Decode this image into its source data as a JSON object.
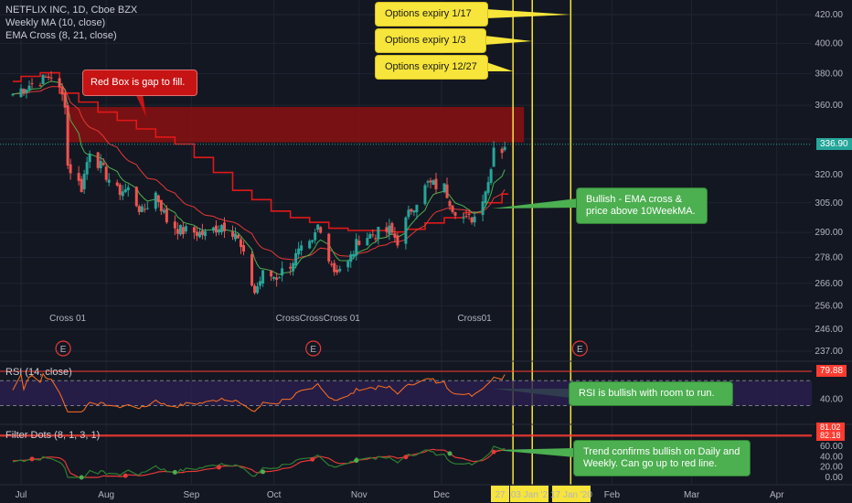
{
  "legend": {
    "title": "NETFLIX INC, 1D, Cboe BZX",
    "weekly_ma": "Weekly MA (10, close)",
    "ema_cross": "EMA Cross (8, 21, close)",
    "rsi": "RSI (14, close)",
    "filter_dots": "Filter Dots (8, 1, 3, 1)"
  },
  "colors": {
    "background": "#131722",
    "up": "#26a69a",
    "down": "#ef5350",
    "ma": "#e01818",
    "ema_fast": "#4caf50",
    "ema_slow": "#e53935",
    "gap_box": "#8b1010",
    "vline": "#f7e53b",
    "rsi_band": "#2a1f4f",
    "rsi_line": "#ff6f22"
  },
  "annotations": {
    "opt_1_17": "Options expiry 1/17",
    "opt_1_3": "Options expiry 1/3",
    "opt_12_27": "Options expiry 12/27",
    "red_box": "Red Box is gap to fill.",
    "bullish_ema": "Bullish - EMA cross & price above 10WeekMA.",
    "rsi_bullish": "RSI is bullish with room to run.",
    "trend_confirms": "Trend confirms bullish on Daily and Weekly.  Can go up to red line."
  },
  "current_price": "336.90",
  "rsi_current": "79.88",
  "filter_values": [
    "81.02",
    "82.18"
  ],
  "cross_labels": [
    "Cross 01",
    "CrossCrossCross 01",
    "Cross01"
  ],
  "earnings_marker": "E",
  "chart_data": {
    "type": "candlestick",
    "x_range": [
      "2019-06-24",
      "2020-04-10"
    ],
    "y_axis": {
      "ticks": [
        237,
        246,
        256,
        266,
        278,
        290,
        305,
        320,
        340,
        360,
        380,
        400,
        420
      ],
      "tick_labels": [
        "237.00",
        "246.00",
        "256.00",
        "266.00",
        "278.00",
        "290.00",
        "305.00",
        "320.00",
        "340.00",
        "360.00",
        "380.00",
        "400.00",
        "420.00"
      ],
      "scale": "log"
    },
    "x_axis_labels": [
      {
        "date": "2019-07-01",
        "label": "Jul"
      },
      {
        "date": "2019-08-01",
        "label": "Aug"
      },
      {
        "date": "2019-09-01",
        "label": "Sep"
      },
      {
        "date": "2019-10-01",
        "label": "Oct"
      },
      {
        "date": "2019-11-01",
        "label": "Nov"
      },
      {
        "date": "2019-12-01",
        "label": "Dec"
      },
      {
        "date": "2020-02-01",
        "label": "Feb"
      },
      {
        "date": "2020-03-01",
        "label": "Mar"
      },
      {
        "date": "2020-04-01",
        "label": "Apr"
      }
    ],
    "highlighted_dates": [
      {
        "date": "2019-12-27",
        "label": "27"
      },
      {
        "date": "2020-01-03",
        "label": "03 Jan '2"
      },
      {
        "date": "2020-01-17",
        "label": "17 Jan '20"
      }
    ],
    "closes": [
      {
        "date": "2019-06-28",
        "close": 367
      },
      {
        "date": "2019-07-03",
        "close": 372
      },
      {
        "date": "2019-07-09",
        "close": 376
      },
      {
        "date": "2019-07-12",
        "close": 379
      },
      {
        "date": "2019-07-17",
        "close": 362
      },
      {
        "date": "2019-07-18",
        "close": 325
      },
      {
        "date": "2019-07-23",
        "close": 313
      },
      {
        "date": "2019-07-26",
        "close": 334
      },
      {
        "date": "2019-07-31",
        "close": 322
      },
      {
        "date": "2019-08-05",
        "close": 311
      },
      {
        "date": "2019-08-09",
        "close": 312
      },
      {
        "date": "2019-08-14",
        "close": 300
      },
      {
        "date": "2019-08-19",
        "close": 310
      },
      {
        "date": "2019-08-23",
        "close": 296
      },
      {
        "date": "2019-08-28",
        "close": 291
      },
      {
        "date": "2019-09-03",
        "close": 290
      },
      {
        "date": "2019-09-06",
        "close": 289
      },
      {
        "date": "2019-09-12",
        "close": 294
      },
      {
        "date": "2019-09-17",
        "close": 290
      },
      {
        "date": "2019-09-20",
        "close": 278
      },
      {
        "date": "2019-09-24",
        "close": 262
      },
      {
        "date": "2019-09-27",
        "close": 270
      },
      {
        "date": "2019-10-02",
        "close": 269
      },
      {
        "date": "2019-10-07",
        "close": 275
      },
      {
        "date": "2019-10-10",
        "close": 280
      },
      {
        "date": "2019-10-15",
        "close": 284
      },
      {
        "date": "2019-10-17",
        "close": 293
      },
      {
        "date": "2019-10-23",
        "close": 272
      },
      {
        "date": "2019-10-28",
        "close": 275
      },
      {
        "date": "2019-11-01",
        "close": 287
      },
      {
        "date": "2019-11-06",
        "close": 289
      },
      {
        "date": "2019-11-12",
        "close": 291
      },
      {
        "date": "2019-11-15",
        "close": 286
      },
      {
        "date": "2019-11-20",
        "close": 302
      },
      {
        "date": "2019-11-26",
        "close": 315
      },
      {
        "date": "2019-12-02",
        "close": 313
      },
      {
        "date": "2019-12-05",
        "close": 303
      },
      {
        "date": "2019-12-10",
        "close": 296
      },
      {
        "date": "2019-12-13",
        "close": 298
      },
      {
        "date": "2019-12-18",
        "close": 316
      },
      {
        "date": "2019-12-20",
        "close": 336
      },
      {
        "date": "2019-12-23",
        "close": 334
      },
      {
        "date": "2019-12-24",
        "close": 336.9
      }
    ],
    "gap_box": {
      "from": "2019-07-18",
      "to": "2019-12-31",
      "low": 338,
      "high": 359
    },
    "vertical_lines": [
      "2019-12-27",
      "2020-01-03",
      "2020-01-17"
    ],
    "cross_markers": [
      {
        "date": "2019-07-18",
        "label": "Cross 01"
      },
      {
        "date": "2019-10-17",
        "label": "CrossCrossCross 01"
      },
      {
        "date": "2019-12-13",
        "label": "Cross01"
      }
    ],
    "earnings_dates": [
      "2019-07-17",
      "2019-10-16",
      "2020-01-21"
    ],
    "rsi": {
      "range": [
        0,
        100
      ],
      "band": [
        30,
        70
      ],
      "last": 79.88,
      "tick_labels": [
        "40.00",
        "79.88"
      ]
    },
    "filter_dots": {
      "tick_labels": [
        "0.00",
        "20.00",
        "40.00",
        "60.00",
        "82.18"
      ]
    }
  }
}
